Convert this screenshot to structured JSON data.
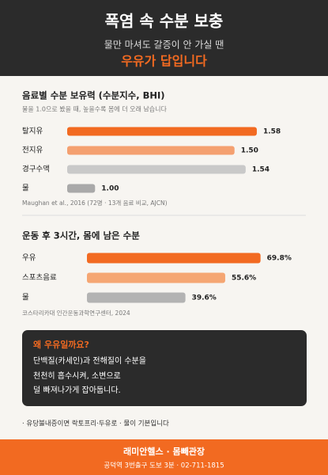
{
  "header": {
    "title": "폭염 속 수분 보충",
    "subtitle": "물만 마셔도 갈증이 안 가실 땐",
    "highlight": "우유가 답입니다"
  },
  "chart_data": [
    {
      "type": "bar",
      "orientation": "horizontal",
      "title": "음료별 수분 보유력 (수분지수, BHI)",
      "subtitle": "물을 1.0으로 봤을 때, 높을수록 몸에 더 오래 남습니다",
      "categories": [
        "탈지유",
        "전지유",
        "경구수액",
        "물"
      ],
      "values": [
        1.58,
        1.5,
        1.54,
        1.0
      ],
      "value_labels": [
        "1.58",
        "1.50",
        "1.54",
        "1.00"
      ],
      "colors": [
        "#f26a21",
        "#f4a070",
        "#c9c9c9",
        "#a9a9a9"
      ],
      "xlim": [
        0.9,
        1.6
      ],
      "source": "Maughan et al., 2016 (72명 · 13개 음료 비교, AJCN)"
    },
    {
      "type": "bar",
      "orientation": "horizontal",
      "title": "운동 후 3시간, 몸에 남은 수분",
      "categories": [
        "우유",
        "스포츠음료",
        "물"
      ],
      "values": [
        69.8,
        55.6,
        39.6
      ],
      "value_labels": [
        "69.8%",
        "55.6%",
        "39.6%"
      ],
      "colors": [
        "#f26a21",
        "#f5a673",
        "#b3b3b3"
      ],
      "xlim": [
        0,
        75
      ],
      "source": "코스타리카대 인간운동과학연구센터, 2024"
    }
  ],
  "callout": {
    "title": "왜 우유일까요?",
    "lines": [
      "단백질(카세인)과 전해질이 수분을",
      "천천히 흡수시켜, 소변으로",
      "덜 빠져나가게 잡아둡니다."
    ]
  },
  "note": "· 유당불내증이면 락토프리·두유로 · 물이 기본입니다",
  "footer": {
    "name": "래미안헬스 · 몸빼관장",
    "info": "공덕역 3번출구 도보 3분 · 02-711-1815"
  }
}
